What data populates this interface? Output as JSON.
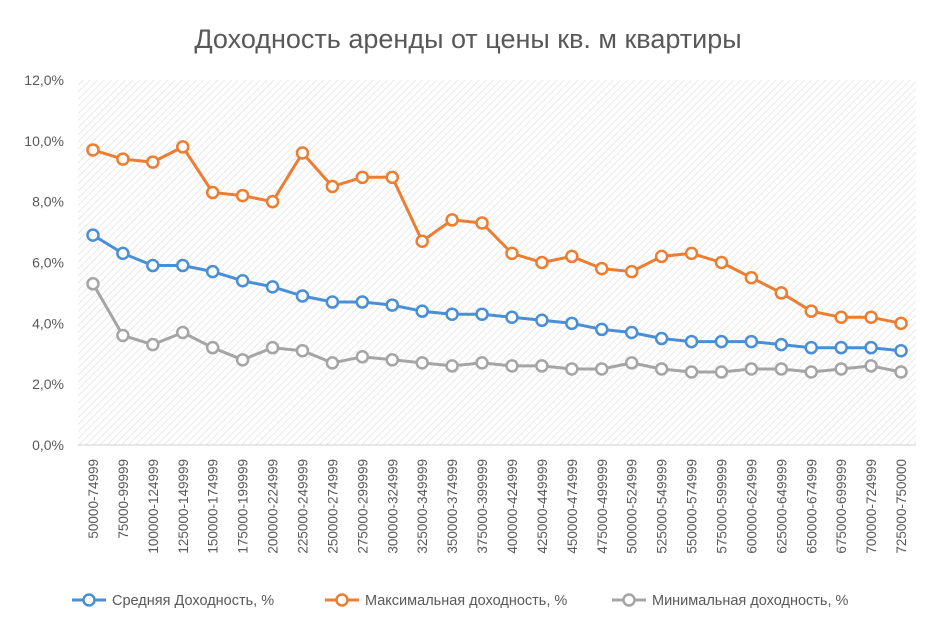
{
  "chart_data": {
    "type": "line",
    "title": "Доходность аренды от цены кв. м квартиры",
    "xlabel": "",
    "ylabel": "",
    "ylim": [
      0,
      12
    ],
    "yticks": [
      "0,0%",
      "2,0%",
      "4,0%",
      "6,0%",
      "8,0%",
      "10,0%",
      "12,0%"
    ],
    "grid": false,
    "plot_background": "diagonal-hatch",
    "legend_position": "bottom",
    "categories": [
      "50000-74999",
      "75000-99999",
      "100000-124999",
      "125000-149999",
      "150000-174999",
      "175000-199999",
      "200000-224999",
      "225000-249999",
      "250000-274999",
      "275000-299999",
      "300000-324999",
      "325000-349999",
      "350000-374999",
      "375000-399999",
      "400000-424999",
      "425000-449999",
      "450000-474999",
      "475000-499999",
      "500000-524999",
      "525000-549999",
      "550000-574999",
      "575000-599999",
      "600000-624999",
      "625000-649999",
      "650000-674999",
      "675000-699999",
      "700000-724999",
      "725000-750000"
    ],
    "series": [
      {
        "name": "Средняя Доходность, %",
        "color": "#4a8fd6",
        "values": [
          6.9,
          6.3,
          5.9,
          5.9,
          5.7,
          5.4,
          5.2,
          4.9,
          4.7,
          4.7,
          4.6,
          4.4,
          4.3,
          4.3,
          4.2,
          4.1,
          4.0,
          3.8,
          3.7,
          3.5,
          3.4,
          3.4,
          3.4,
          3.3,
          3.2,
          3.2,
          3.2,
          3.1
        ]
      },
      {
        "name": "Максимальная доходность, %",
        "color": "#ed7d31",
        "values": [
          9.7,
          9.4,
          9.3,
          9.8,
          8.3,
          8.2,
          8.0,
          9.6,
          8.5,
          8.8,
          8.8,
          6.7,
          7.4,
          7.3,
          6.3,
          6.0,
          6.2,
          5.8,
          5.7,
          6.2,
          6.3,
          6.0,
          5.5,
          5.0,
          4.4,
          4.2,
          4.2,
          4.0
        ]
      },
      {
        "name": "Минимальная доходность, %",
        "color": "#a5a5a5",
        "values": [
          5.3,
          3.6,
          3.3,
          3.7,
          3.2,
          2.8,
          3.2,
          3.1,
          2.7,
          2.9,
          2.8,
          2.7,
          2.6,
          2.7,
          2.6,
          2.6,
          2.5,
          2.5,
          2.7,
          2.5,
          2.4,
          2.4,
          2.5,
          2.5,
          2.4,
          2.5,
          2.6,
          2.4
        ]
      }
    ]
  }
}
